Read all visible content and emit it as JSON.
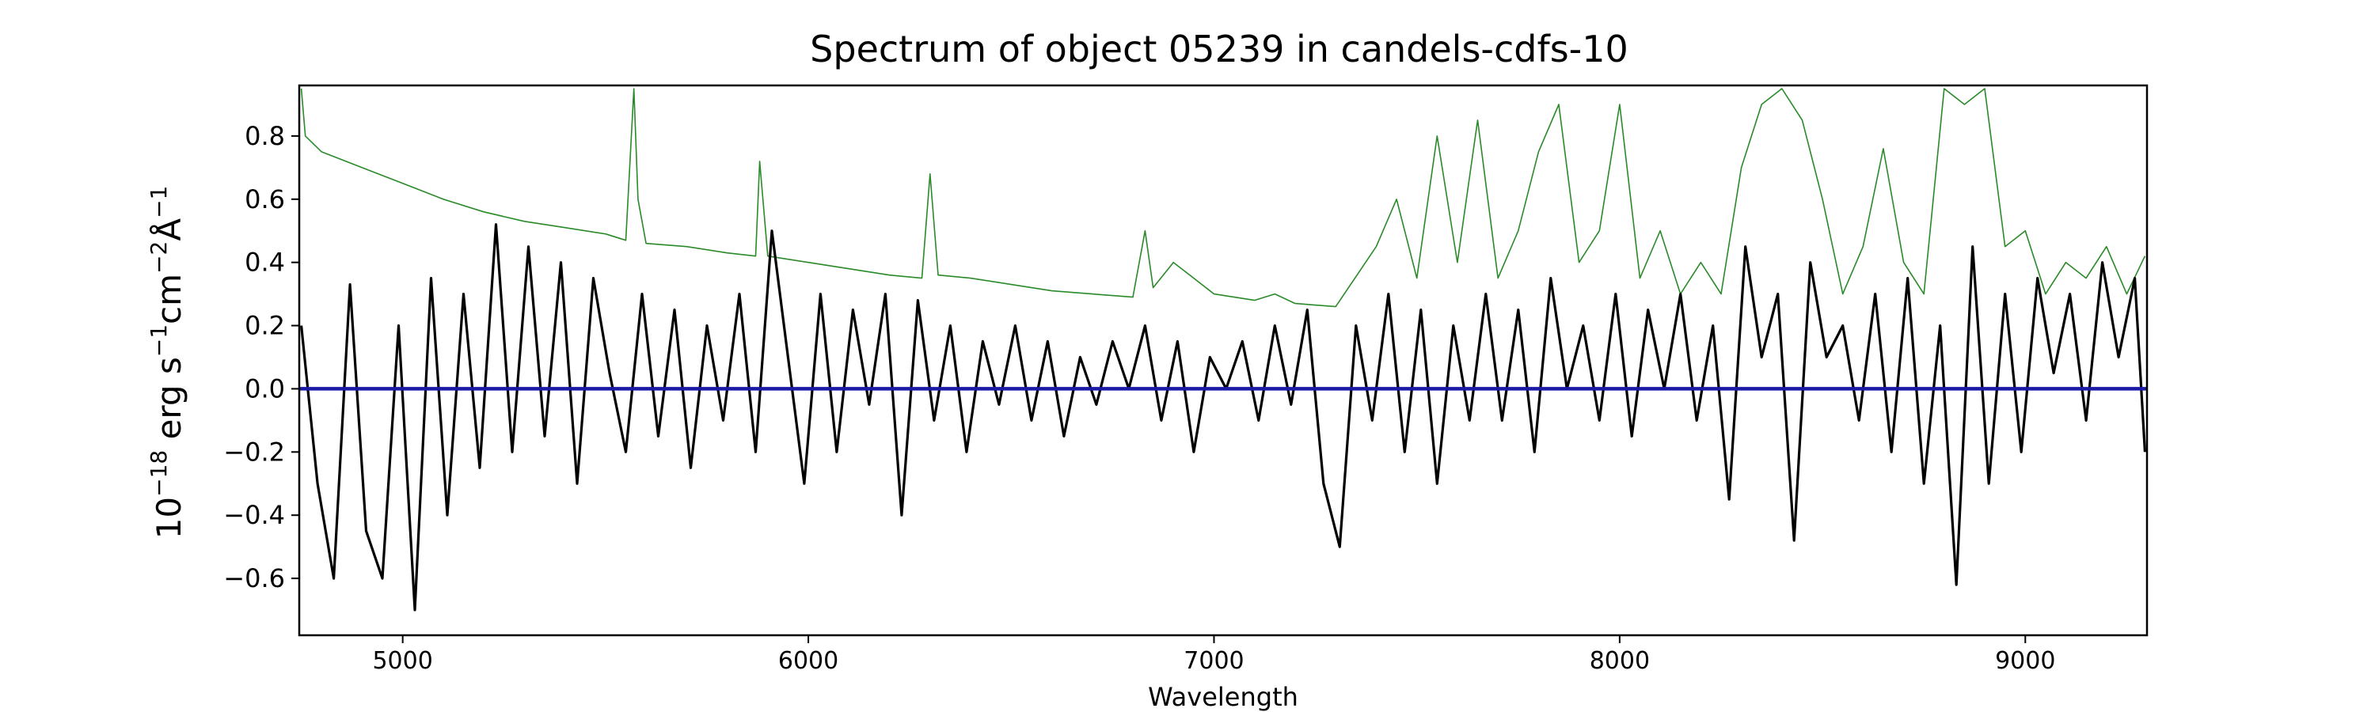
{
  "chart_data": {
    "type": "line",
    "title": "Spectrum of object 05239 in candels-cdfs-10",
    "xlabel": "Wavelength",
    "ylabel_base": "10",
    "ylabel_exp": "−18",
    "ylabel_unit1": " erg s",
    "ylabel_exp2": "−1",
    "ylabel_unit2": "cm",
    "ylabel_exp3": "−2",
    "ylabel_unit3": "Å",
    "ylabel_exp4": "−1",
    "xlim": [
      4745,
      9300
    ],
    "ylim": [
      -0.78,
      0.96
    ],
    "x_ticks": [
      5000,
      6000,
      7000,
      8000,
      9000
    ],
    "x_tick_labels": [
      "5000",
      "6000",
      "7000",
      "8000",
      "9000"
    ],
    "y_ticks": [
      -0.6,
      -0.4,
      -0.2,
      0.0,
      0.2,
      0.4,
      0.6,
      0.8
    ],
    "y_tick_labels": [
      "−0.6",
      "−0.4",
      "−0.2",
      "0.0",
      "0.2",
      "0.4",
      "0.6",
      "0.8"
    ],
    "grid": false,
    "colors": {
      "flux": "#000000",
      "error": "#2a8a2a",
      "zero": "#1a1aa6"
    },
    "series": [
      {
        "role": "flux",
        "x": [
          4750,
          4790,
          4830,
          4870,
          4910,
          4950,
          4990,
          5030,
          5070,
          5110,
          5150,
          5190,
          5230,
          5270,
          5310,
          5350,
          5390,
          5430,
          5470,
          5510,
          5550,
          5590,
          5630,
          5670,
          5710,
          5750,
          5790,
          5830,
          5870,
          5910,
          5950,
          5990,
          6030,
          6070,
          6110,
          6150,
          6190,
          6230,
          6270,
          6310,
          6350,
          6390,
          6430,
          6470,
          6510,
          6550,
          6590,
          6630,
          6670,
          6710,
          6750,
          6790,
          6830,
          6870,
          6910,
          6950,
          6990,
          7030,
          7070,
          7110,
          7150,
          7190,
          7230,
          7270,
          7310,
          7350,
          7390,
          7430,
          7470,
          7510,
          7550,
          7590,
          7630,
          7670,
          7710,
          7750,
          7790,
          7830,
          7870,
          7910,
          7950,
          7990,
          8030,
          8070,
          8110,
          8150,
          8190,
          8230,
          8270,
          8310,
          8350,
          8390,
          8430,
          8470,
          8510,
          8550,
          8590,
          8630,
          8670,
          8710,
          8750,
          8790,
          8830,
          8870,
          8910,
          8950,
          8990,
          9030,
          9070,
          9110,
          9150,
          9190,
          9230,
          9270,
          9295
        ],
        "y": [
          0.2,
          -0.3,
          -0.6,
          0.33,
          -0.45,
          -0.6,
          0.2,
          -0.7,
          0.35,
          -0.4,
          0.3,
          -0.25,
          0.52,
          -0.2,
          0.45,
          -0.15,
          0.4,
          -0.3,
          0.35,
          0.05,
          -0.2,
          0.3,
          -0.15,
          0.25,
          -0.25,
          0.2,
          -0.1,
          0.3,
          -0.2,
          0.5,
          0.1,
          -0.3,
          0.3,
          -0.2,
          0.25,
          -0.05,
          0.3,
          -0.4,
          0.28,
          -0.1,
          0.2,
          -0.2,
          0.15,
          -0.05,
          0.2,
          -0.1,
          0.15,
          -0.15,
          0.1,
          -0.05,
          0.15,
          0.0,
          0.2,
          -0.1,
          0.15,
          -0.2,
          0.1,
          0.0,
          0.15,
          -0.1,
          0.2,
          -0.05,
          0.25,
          -0.3,
          -0.5,
          0.2,
          -0.1,
          0.3,
          -0.2,
          0.25,
          -0.3,
          0.2,
          -0.1,
          0.3,
          -0.1,
          0.25,
          -0.2,
          0.35,
          0.0,
          0.2,
          -0.1,
          0.3,
          -0.15,
          0.25,
          0.0,
          0.3,
          -0.1,
          0.2,
          -0.35,
          0.45,
          0.1,
          0.3,
          -0.48,
          0.4,
          0.1,
          0.2,
          -0.1,
          0.3,
          -0.2,
          0.35,
          -0.3,
          0.2,
          -0.62,
          0.45,
          -0.3,
          0.3,
          -0.2,
          0.35,
          0.05,
          0.3,
          -0.1,
          0.4,
          0.1,
          0.35,
          -0.2
        ]
      },
      {
        "role": "error",
        "x": [
          4750,
          4760,
          4800,
          4900,
          5000,
          5100,
          5200,
          5300,
          5400,
          5500,
          5550,
          5570,
          5580,
          5600,
          5700,
          5800,
          5870,
          5880,
          5900,
          6000,
          6100,
          6200,
          6280,
          6300,
          6320,
          6400,
          6500,
          6600,
          6700,
          6800,
          6830,
          6850,
          6900,
          6950,
          7000,
          7100,
          7150,
          7200,
          7300,
          7400,
          7450,
          7500,
          7550,
          7600,
          7650,
          7700,
          7750,
          7800,
          7850,
          7900,
          7950,
          8000,
          8050,
          8100,
          8150,
          8200,
          8250,
          8300,
          8350,
          8400,
          8450,
          8500,
          8550,
          8600,
          8650,
          8700,
          8750,
          8800,
          8850,
          8900,
          8950,
          9000,
          9050,
          9100,
          9150,
          9200,
          9250,
          9295
        ],
        "y": [
          0.95,
          0.8,
          0.75,
          0.7,
          0.65,
          0.6,
          0.56,
          0.53,
          0.51,
          0.49,
          0.47,
          0.95,
          0.6,
          0.46,
          0.45,
          0.43,
          0.42,
          0.72,
          0.42,
          0.4,
          0.38,
          0.36,
          0.35,
          0.68,
          0.36,
          0.35,
          0.33,
          0.31,
          0.3,
          0.29,
          0.5,
          0.32,
          0.4,
          0.35,
          0.3,
          0.28,
          0.3,
          0.27,
          0.26,
          0.45,
          0.6,
          0.35,
          0.8,
          0.4,
          0.85,
          0.35,
          0.5,
          0.75,
          0.9,
          0.4,
          0.5,
          0.9,
          0.35,
          0.5,
          0.3,
          0.4,
          0.3,
          0.7,
          0.9,
          0.95,
          0.85,
          0.6,
          0.3,
          0.45,
          0.76,
          0.4,
          0.3,
          0.95,
          0.9,
          0.95,
          0.45,
          0.5,
          0.3,
          0.4,
          0.35,
          0.45,
          0.3,
          0.42
        ]
      },
      {
        "role": "zero",
        "x": [
          4745,
          9300
        ],
        "y": [
          0.0,
          0.0
        ]
      }
    ]
  }
}
